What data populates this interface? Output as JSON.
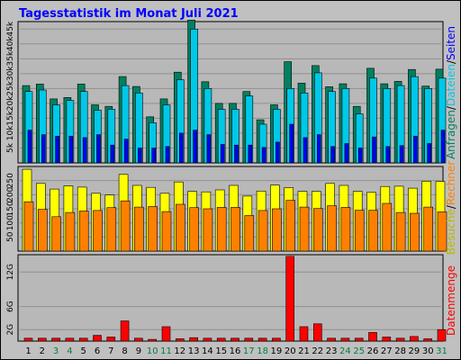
{
  "title": "Tagesstatistik im Monat Juli 2021",
  "colors": {
    "anfragen": "#008060",
    "dateien": "#00c8e8",
    "seiten": "#0000ff",
    "rechner": "#ff8000",
    "besuche": "#ffff00",
    "datenmenge": "#ff0000",
    "weekend_day": "#008040",
    "weekday_day": "#000000"
  },
  "legend": {
    "top": [
      "Anfragen",
      "/",
      "Dateien",
      "/",
      "Seiten"
    ],
    "middle": [
      "Besuche",
      "/",
      "Rechner"
    ],
    "bottom": [
      "Datenmenge"
    ]
  },
  "chart_data": [
    {
      "type": "bar",
      "title": "",
      "categories": [
        "1",
        "2",
        "3",
        "4",
        "5",
        "6",
        "7",
        "8",
        "9",
        "10",
        "11",
        "12",
        "13",
        "14",
        "15",
        "16",
        "17",
        "18",
        "19",
        "20",
        "21",
        "22",
        "23",
        "24",
        "25",
        "26",
        "27",
        "28",
        "29",
        "30",
        "31"
      ],
      "weekend_days": [
        "3",
        "4",
        "10",
        "11",
        "17",
        "18",
        "24",
        "25",
        "31"
      ],
      "y_ticks": [
        "5k",
        "10k",
        "15k",
        "20k",
        "25k",
        "30k",
        "35k",
        "40k",
        "45k"
      ],
      "ylim": [
        0,
        47500
      ],
      "series": [
        {
          "name": "Anfragen",
          "values": [
            26000,
            26500,
            21500,
            22000,
            26500,
            19500,
            19000,
            29000,
            25700,
            15500,
            21500,
            30500,
            48000,
            27300,
            20000,
            20000,
            24000,
            14500,
            19500,
            34000,
            26800,
            32700,
            25600,
            26600,
            19000,
            31800,
            26600,
            27400,
            31400,
            25800,
            31500
          ]
        },
        {
          "name": "Dateien",
          "values": [
            24000,
            24500,
            19500,
            21000,
            24000,
            17700,
            18000,
            26000,
            23500,
            13500,
            19500,
            28000,
            45000,
            25000,
            18000,
            18000,
            22500,
            13000,
            18000,
            25000,
            23500,
            30300,
            24000,
            25000,
            16500,
            28500,
            25000,
            26000,
            29000,
            25000,
            28500
          ]
        },
        {
          "name": "Seiten",
          "values": [
            11000,
            9500,
            9000,
            9000,
            8500,
            9500,
            6000,
            8000,
            5000,
            5000,
            5500,
            10000,
            11000,
            9500,
            6200,
            6000,
            6000,
            5200,
            7000,
            13000,
            8500,
            9500,
            5500,
            6500,
            5000,
            8700,
            5500,
            5800,
            9000,
            6500,
            11000
          ]
        }
      ]
    },
    {
      "type": "bar",
      "title": "",
      "categories": [
        "1",
        "2",
        "3",
        "4",
        "5",
        "6",
        "7",
        "8",
        "9",
        "10",
        "11",
        "12",
        "13",
        "14",
        "15",
        "16",
        "17",
        "18",
        "19",
        "20",
        "21",
        "22",
        "23",
        "24",
        "25",
        "26",
        "27",
        "28",
        "29",
        "30",
        "31"
      ],
      "y_ticks": [
        "50",
        "100",
        "150",
        "200",
        "250"
      ],
      "ylim": [
        0,
        300
      ],
      "series": [
        {
          "name": "Besuche",
          "values": [
            290,
            240,
            220,
            231,
            227,
            205,
            199,
            272,
            233,
            226,
            205,
            245,
            212,
            210,
            217,
            233,
            195,
            213,
            234,
            225,
            212,
            212,
            240,
            233,
            212,
            208,
            229,
            230,
            223,
            248,
            247
          ]
        },
        {
          "name": "Rechner",
          "values": [
            175,
            148,
            122,
            137,
            142,
            144,
            154,
            178,
            156,
            158,
            140,
            166,
            154,
            150,
            155,
            155,
            126,
            144,
            150,
            180,
            156,
            151,
            161,
            155,
            145,
            145,
            169,
            137,
            134,
            156,
            139
          ]
        }
      ]
    },
    {
      "type": "bar",
      "title": "",
      "categories": [
        "1",
        "2",
        "3",
        "4",
        "5",
        "6",
        "7",
        "8",
        "9",
        "10",
        "11",
        "12",
        "13",
        "14",
        "15",
        "16",
        "17",
        "18",
        "19",
        "20",
        "21",
        "22",
        "23",
        "24",
        "25",
        "26",
        "27",
        "28",
        "29",
        "30",
        "31"
      ],
      "y_ticks": [
        "2G",
        "6G",
        "12G"
      ],
      "ylim": [
        0,
        15
      ],
      "series": [
        {
          "name": "Datenmenge",
          "values": [
            0.5,
            0.5,
            0.5,
            0.5,
            0.5,
            1.0,
            0.7,
            3.5,
            0.5,
            0.3,
            2.5,
            0.4,
            0.6,
            0.5,
            0.5,
            0.5,
            0.5,
            0.5,
            0.5,
            14.7,
            2.5,
            3.0,
            0.5,
            0.5,
            0.5,
            1.5,
            0.7,
            0.5,
            0.8,
            0.4,
            2.0
          ]
        }
      ]
    }
  ]
}
